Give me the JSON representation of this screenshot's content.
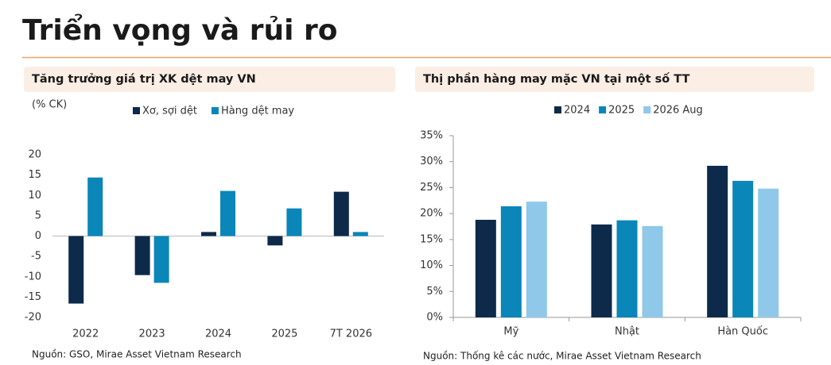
{
  "title": "Triển vọng và rủi ro",
  "chart_data": [
    {
      "type": "bar",
      "title": "Tăng trưởng giá trị XK dệt may VN",
      "y_label": "(% CK)",
      "categories": [
        "2022",
        "2023",
        "2024",
        "2025",
        "7T 2026"
      ],
      "series": [
        {
          "name": "Xơ, sợi dệt",
          "color": "#0d2a4a",
          "values": [
            -16.6,
            -9.6,
            1.0,
            -2.3,
            10.9
          ]
        },
        {
          "name": "Hàng dệt may",
          "color": "#0a86b8",
          "values": [
            14.4,
            -11.5,
            11.1,
            6.8,
            1.0
          ]
        }
      ],
      "ylim": [
        -20,
        20
      ],
      "yticks": [
        -20,
        -15,
        -10,
        -5,
        0,
        5,
        10,
        15,
        20
      ],
      "source": "Nguồn: GSO, Mirae Asset Vietnam Research"
    },
    {
      "type": "bar",
      "title": "Thị phần hàng may mặc VN tại một số TT",
      "categories": [
        "Mỹ",
        "Nhật",
        "Hàn Quốc"
      ],
      "series": [
        {
          "name": "2024",
          "color": "#0d2a4a",
          "values": [
            18.8,
            17.9,
            29.2
          ]
        },
        {
          "name": "2025",
          "color": "#0a86b8",
          "values": [
            21.4,
            18.7,
            26.3
          ]
        },
        {
          "name": "2026 Aug",
          "color": "#8fc8e8",
          "values": [
            22.3,
            17.6,
            24.8
          ]
        }
      ],
      "ylim": [
        0,
        35
      ],
      "yticks": [
        {
          "value": 0,
          "label": "0%"
        },
        {
          "value": 5,
          "label": "5%"
        },
        {
          "value": 10,
          "label": "10%"
        },
        {
          "value": 15,
          "label": "15%"
        },
        {
          "value": 20,
          "label": "20%"
        },
        {
          "value": 25,
          "label": "25%"
        },
        {
          "value": 30,
          "label": "30%"
        },
        {
          "value": 35,
          "label": "35%"
        }
      ],
      "source": "Nguồn: Thống kê các nước, Mirae Asset Vietnam Research"
    }
  ]
}
